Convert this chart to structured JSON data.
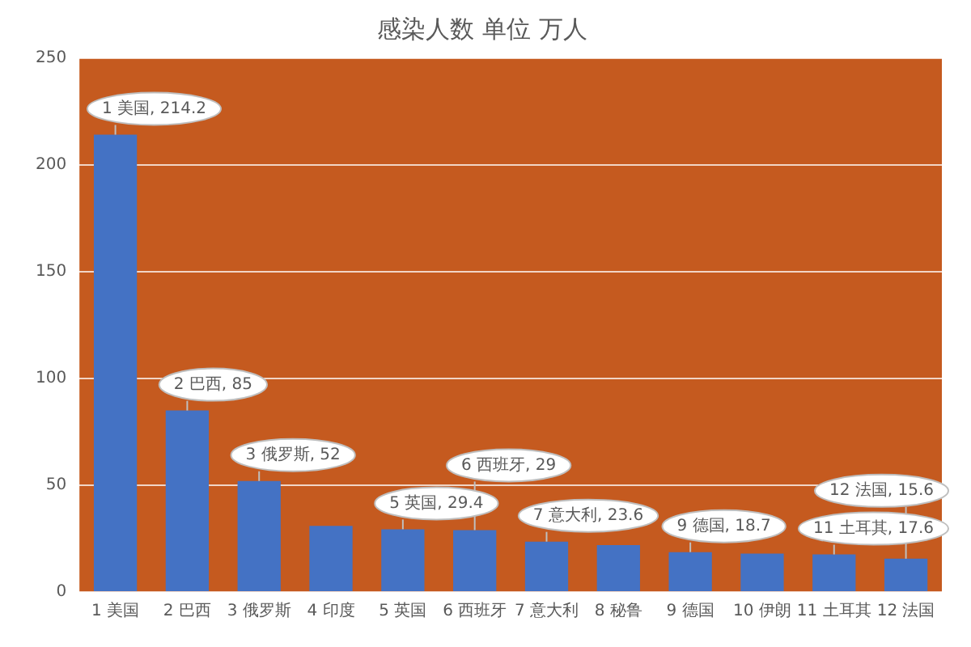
{
  "chart_data": {
    "type": "bar",
    "title": "感染人数 单位 万人",
    "categories": [
      "1 美国",
      "2 巴西",
      "3 俄罗斯",
      "4 印度",
      "5 英国",
      "6 西班牙",
      "7 意大利",
      "8 秘鲁",
      "9 德国",
      "10 伊朗",
      "11 土耳其",
      "12 法国"
    ],
    "values": [
      214.2,
      85,
      52,
      31,
      29.4,
      29,
      23.6,
      22,
      18.7,
      18,
      17.6,
      15.6
    ],
    "color": "#4472c4",
    "value_labels": [
      "1 美国, 214.2",
      "2 巴西, 85",
      "3 俄罗斯, 52",
      null,
      "5 英国, 29.4",
      "6 西班牙, 29",
      "7 意大利, 23.6",
      null,
      "9 德国, 18.7",
      null,
      "11 土耳其, 17.6",
      "12 法国, 15.6"
    ],
    "ylim": [
      0,
      250
    ],
    "yticks": [
      0,
      50,
      100,
      150,
      200,
      250
    ],
    "grid": "y"
  }
}
